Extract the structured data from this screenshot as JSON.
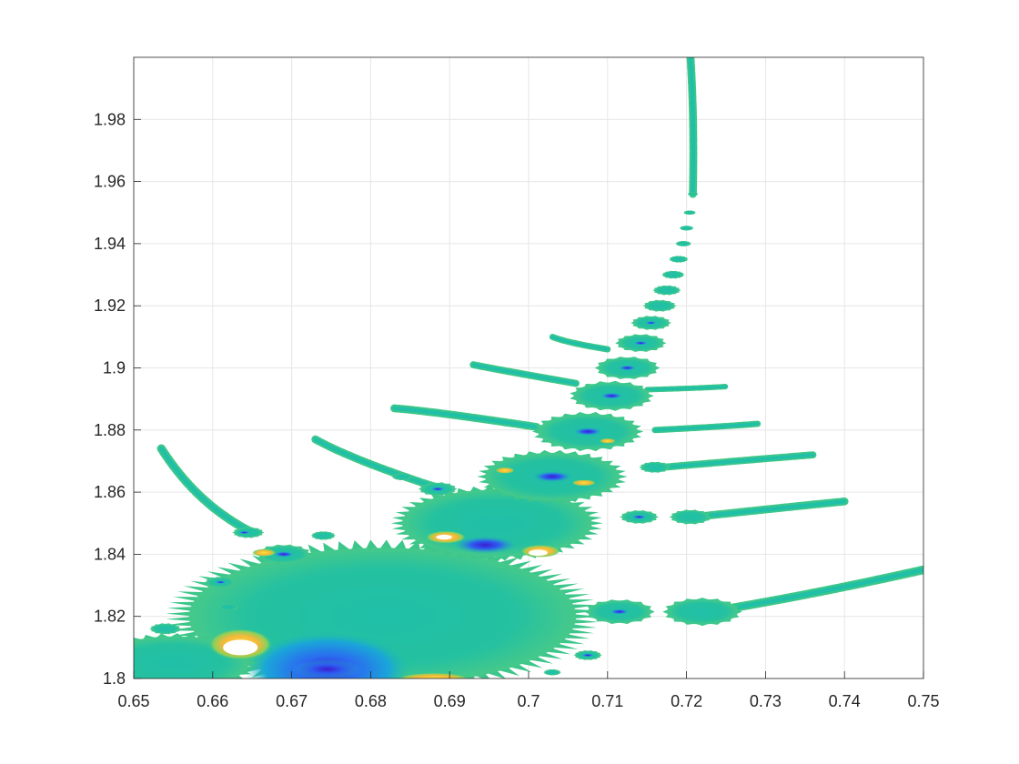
{
  "chart_data": {
    "type": "heatmap",
    "title": "",
    "xlabel": "",
    "ylabel": "",
    "xlim": [
      0.65,
      0.75
    ],
    "ylim": [
      1.8,
      2.0
    ],
    "grid": true,
    "colormap": "parula",
    "x_ticks": [
      0.65,
      0.66,
      0.67,
      0.68,
      0.69,
      0.7,
      0.71,
      0.72,
      0.73,
      0.74,
      0.75
    ],
    "x_tick_labels": [
      "0.65",
      "0.66",
      "0.67",
      "0.68",
      "0.69",
      "0.7",
      "0.71",
      "0.72",
      "0.73",
      "0.74",
      "0.75"
    ],
    "y_ticks": [
      1.8,
      1.82,
      1.84,
      1.86,
      1.88,
      1.9,
      1.92,
      1.94,
      1.96,
      1.98
    ],
    "y_tick_labels": [
      "1.8",
      "1.82",
      "1.84",
      "1.86",
      "1.88",
      "1.9",
      "1.92",
      "1.94",
      "1.96",
      "1.98"
    ],
    "colors": {
      "background": "#ffffff",
      "teal": "#1fbfa8",
      "green": "#3cc68a",
      "blue": "#2a6cf0",
      "dark_blue": "#3a1fd0",
      "yellow": "#f9d23a",
      "orange": "#f5b83a",
      "grid": "#e6e6e6",
      "axis": "#262626"
    },
    "bulbs": [
      {
        "x": 0.6815,
        "y": 1.82,
        "r": 0.0245,
        "blob": {
          "x": 0.6745,
          "y": 1.803,
          "rx": 0.0105,
          "ry": 0.012
        }
      },
      {
        "x": 0.655,
        "y": 1.805,
        "r": 0.0095
      },
      {
        "x": 0.696,
        "y": 1.85,
        "r": 0.012
      },
      {
        "x": 0.703,
        "y": 1.865,
        "r": 0.0085
      },
      {
        "x": 0.7075,
        "y": 1.8795,
        "r": 0.0063
      },
      {
        "x": 0.7105,
        "y": 1.891,
        "r": 0.0048
      },
      {
        "x": 0.7125,
        "y": 1.9,
        "r": 0.0037
      },
      {
        "x": 0.7142,
        "y": 1.908,
        "r": 0.0029
      },
      {
        "x": 0.7155,
        "y": 1.9145,
        "r": 0.0023
      },
      {
        "x": 0.7166,
        "y": 1.92,
        "r": 0.0019
      },
      {
        "x": 0.7175,
        "y": 1.925,
        "r": 0.0016
      },
      {
        "x": 0.7183,
        "y": 1.93,
        "r": 0.0013
      },
      {
        "x": 0.719,
        "y": 1.935,
        "r": 0.0011
      },
      {
        "x": 0.7196,
        "y": 1.94,
        "r": 0.0009
      },
      {
        "x": 0.72,
        "y": 1.945,
        "r": 0.0008
      },
      {
        "x": 0.7204,
        "y": 1.95,
        "r": 0.0007
      },
      {
        "x": 0.7208,
        "y": 1.956,
        "r": 0.0006
      },
      {
        "x": 0.669,
        "y": 1.84,
        "r": 0.0032
      },
      {
        "x": 0.6645,
        "y": 1.847,
        "r": 0.0018
      },
      {
        "x": 0.661,
        "y": 1.831,
        "r": 0.0018
      },
      {
        "x": 0.662,
        "y": 1.823,
        "r": 0.0012
      },
      {
        "x": 0.6885,
        "y": 1.861,
        "r": 0.0022
      },
      {
        "x": 0.684,
        "y": 1.865,
        "r": 0.0012
      },
      {
        "x": 0.674,
        "y": 1.846,
        "r": 0.0014
      },
      {
        "x": 0.654,
        "y": 1.816,
        "r": 0.0018
      },
      {
        "x": 0.7115,
        "y": 1.8215,
        "r": 0.004
      },
      {
        "x": 0.722,
        "y": 1.8215,
        "r": 0.0045
      },
      {
        "x": 0.714,
        "y": 1.852,
        "r": 0.0022
      },
      {
        "x": 0.7205,
        "y": 1.852,
        "r": 0.0024
      },
      {
        "x": 0.716,
        "y": 1.868,
        "r": 0.0018
      },
      {
        "x": 0.7075,
        "y": 1.8075,
        "r": 0.0016
      },
      {
        "x": 0.703,
        "y": 1.802,
        "r": 0.001
      }
    ],
    "filaments": [
      {
        "from": [
          0.665,
          1.847
        ],
        "ctrl": [
          0.658,
          1.856
        ],
        "to": [
          0.6535,
          1.874
        ],
        "w": 0.0011
      },
      {
        "from": [
          0.689,
          1.861
        ],
        "ctrl": [
          0.678,
          1.87
        ],
        "to": [
          0.673,
          1.877
        ],
        "w": 0.001
      },
      {
        "from": [
          0.701,
          1.881
        ],
        "ctrl": [
          0.688,
          1.886
        ],
        "to": [
          0.683,
          1.887
        ],
        "w": 0.001
      },
      {
        "from": [
          0.706,
          1.895
        ],
        "ctrl": [
          0.697,
          1.899
        ],
        "to": [
          0.693,
          1.901
        ],
        "w": 0.0009
      },
      {
        "from": [
          0.71,
          1.906
        ],
        "ctrl": [
          0.705,
          1.908
        ],
        "to": [
          0.703,
          1.91
        ],
        "w": 0.0008
      },
      {
        "from": [
          0.723,
          1.8215
        ],
        "ctrl": [
          0.736,
          1.827
        ],
        "to": [
          0.75,
          1.835
        ],
        "w": 0.0011
      },
      {
        "from": [
          0.721,
          1.852
        ],
        "ctrl": [
          0.732,
          1.855
        ],
        "to": [
          0.74,
          1.857
        ],
        "w": 0.001
      },
      {
        "from": [
          0.717,
          1.868
        ],
        "ctrl": [
          0.726,
          1.87
        ],
        "to": [
          0.736,
          1.872
        ],
        "w": 0.0009
      },
      {
        "from": [
          0.716,
          1.88
        ],
        "ctrl": [
          0.724,
          1.881
        ],
        "to": [
          0.729,
          1.882
        ],
        "w": 0.0008
      },
      {
        "from": [
          0.715,
          1.893
        ],
        "ctrl": [
          0.722,
          1.8935
        ],
        "to": [
          0.725,
          1.894
        ],
        "w": 0.0007
      },
      {
        "from": [
          0.7208,
          1.956
        ],
        "ctrl": [
          0.721,
          1.98
        ],
        "to": [
          0.7205,
          2.0
        ],
        "w": 0.001
      }
    ],
    "dark_spots": [
      {
        "x": 0.6745,
        "y": 1.803,
        "r": 0.0045
      },
      {
        "x": 0.6945,
        "y": 1.843,
        "r": 0.004
      },
      {
        "x": 0.703,
        "y": 1.865,
        "r": 0.0025
      },
      {
        "x": 0.7075,
        "y": 1.8795,
        "r": 0.0018
      },
      {
        "x": 0.7105,
        "y": 1.891,
        "r": 0.0014
      },
      {
        "x": 0.7125,
        "y": 1.9,
        "r": 0.0011
      },
      {
        "x": 0.7142,
        "y": 1.908,
        "r": 0.0009
      },
      {
        "x": 0.7155,
        "y": 1.9145,
        "r": 0.0007
      },
      {
        "x": 0.669,
        "y": 1.84,
        "r": 0.0013
      },
      {
        "x": 0.7115,
        "y": 1.8215,
        "r": 0.0012
      },
      {
        "x": 0.714,
        "y": 1.852,
        "r": 0.0009
      },
      {
        "x": 0.6885,
        "y": 1.861,
        "r": 0.0009
      },
      {
        "x": 0.7075,
        "y": 1.8075,
        "r": 0.0008
      },
      {
        "x": 0.661,
        "y": 1.831,
        "r": 0.0007
      },
      {
        "x": 0.664,
        "y": 1.847,
        "r": 0.0007
      }
    ],
    "hot_spots": [
      {
        "x": 0.6635,
        "y": 1.811,
        "rx": 0.004,
        "ry": 0.005
      },
      {
        "x": 0.6895,
        "y": 1.8455,
        "rx": 0.0025,
        "ry": 0.002
      },
      {
        "x": 0.7015,
        "y": 1.841,
        "rx": 0.0025,
        "ry": 0.002
      },
      {
        "x": 0.688,
        "y": 1.8,
        "rx": 0.0045,
        "ry": 0.0018
      },
      {
        "x": 0.6665,
        "y": 1.8405,
        "rx": 0.0015,
        "ry": 0.0012
      },
      {
        "x": 0.707,
        "y": 1.863,
        "rx": 0.0015,
        "ry": 0.001
      },
      {
        "x": 0.697,
        "y": 1.867,
        "rx": 0.0012,
        "ry": 0.001
      },
      {
        "x": 0.71,
        "y": 1.8765,
        "rx": 0.001,
        "ry": 0.0008
      }
    ],
    "white_holes": [
      {
        "x": 0.6635,
        "y": 1.81,
        "rx": 0.0022,
        "ry": 0.0025
      },
      {
        "x": 0.7012,
        "y": 1.8405,
        "rx": 0.0012,
        "ry": 0.001
      },
      {
        "x": 0.6893,
        "y": 1.8455,
        "rx": 0.001,
        "ry": 0.0008
      }
    ]
  }
}
